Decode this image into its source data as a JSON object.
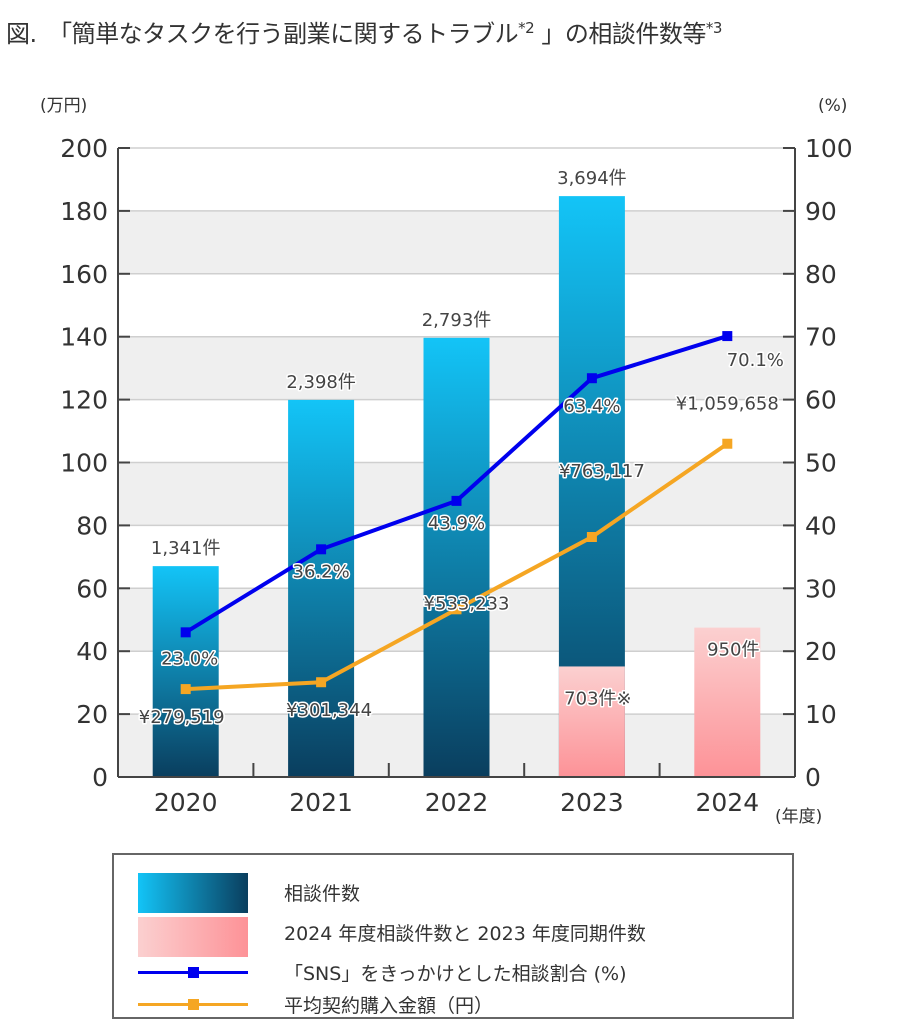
{
  "title": {
    "prefix": "図.　「簡単なタスクを行う副業に関するトラブル",
    "sup1": "*2",
    "middle": " 」の相談件数等",
    "sup2": "*3"
  },
  "chart_data": {
    "type": "bar",
    "title": "「簡単なタスクを行う副業に関するトラブル*2 」の相談件数等*3",
    "categories": [
      "2020",
      "2021",
      "2022",
      "2023",
      "2024"
    ],
    "xlabel": "(年度)",
    "ylabel_left": "(万円)",
    "ylabel_right": "(%)",
    "ylim_left": [
      0,
      200
    ],
    "ylim_right": [
      0,
      100
    ],
    "yticks_left": [
      "0",
      "20",
      "40",
      "60",
      "80",
      "100",
      "120",
      "140",
      "160",
      "180",
      "200"
    ],
    "yticks_right": [
      "0",
      "10",
      "20",
      "30",
      "40",
      "50",
      "60",
      "70",
      "80",
      "90",
      "100"
    ],
    "grid": true,
    "legend_position": "bottom",
    "series": [
      {
        "name": "相談件数",
        "type": "bar",
        "values": [
          1341,
          2398,
          2793,
          3694,
          null
        ],
        "labels": [
          "1,341件",
          "2,398件",
          "2,793件",
          "3,694件",
          ""
        ],
        "color_top": "#13c4f7",
        "color_bottom": "#0a3e5e"
      },
      {
        "name": "2024年度相談件数と2023年度同期件数",
        "type": "bar",
        "values": [
          null,
          null,
          null,
          703,
          950
        ],
        "labels": [
          "",
          "",
          "",
          "703件※",
          "950件"
        ],
        "color_top": "#fbd0d0",
        "color_bottom": "#fd9297"
      },
      {
        "name": "「SNS」をきっかけとした相談割合 (%)",
        "type": "line",
        "axis": "right",
        "values": [
          23.0,
          36.2,
          43.9,
          63.4,
          70.1
        ],
        "labels": [
          "23.0%",
          "36.2%",
          "43.9%",
          "63.4%",
          "70.1%"
        ],
        "color": "#0000ee"
      },
      {
        "name": "平均契約購入金額 (円)",
        "type": "line",
        "axis": "left",
        "values": [
          279519,
          301344,
          533233,
          763117,
          1059658
        ],
        "labels": [
          "¥279,519",
          "¥301,344",
          "¥533,233",
          "¥763,117",
          "¥1,059,658"
        ],
        "color": "#f5a623"
      }
    ]
  },
  "legend": {
    "items": [
      "相談件数",
      "2024 年度相談件数と 2023 年度同期件数",
      "「SNS」をきっかけとした相談割合 (%)",
      "平均契約購入金額（円）"
    ]
  }
}
